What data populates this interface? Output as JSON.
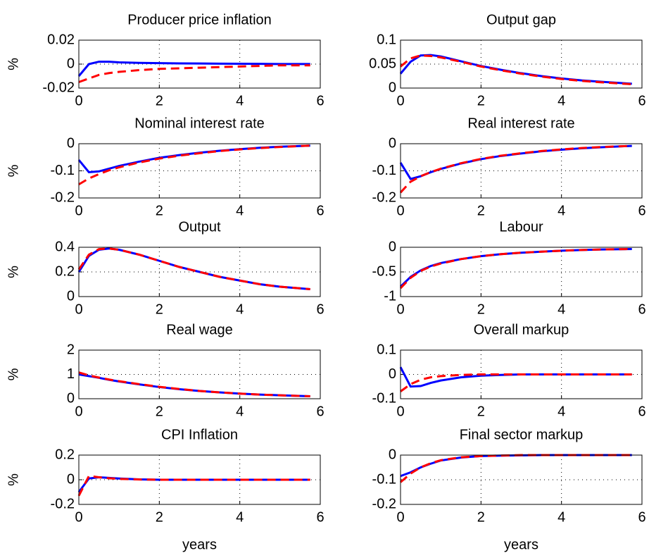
{
  "chart_data": [
    {
      "type": "line",
      "title": "Producer price inflation",
      "ylabel": "%",
      "grid": true,
      "x": [
        0,
        0.25,
        0.5,
        0.75,
        1,
        1.5,
        2,
        2.5,
        3,
        3.5,
        4,
        4.5,
        5,
        5.75
      ],
      "xlim": [
        0,
        6
      ],
      "xticks": [
        0,
        2,
        4,
        6
      ],
      "ylim": [
        -0.02,
        0.02
      ],
      "yticks": [
        -0.02,
        0,
        0.02
      ],
      "series": [
        {
          "color": "#0000ff",
          "dash": false,
          "values": [
            -0.01,
            0,
            0.002,
            0.002,
            0.0015,
            0.001,
            0.0008,
            0.0006,
            0.0005,
            0.0004,
            0.0003,
            0.0002,
            0.0001,
            0.0001
          ]
        },
        {
          "color": "#ff0000",
          "dash": true,
          "values": [
            -0.015,
            -0.012,
            -0.009,
            -0.0075,
            -0.0065,
            -0.005,
            -0.004,
            -0.0035,
            -0.003,
            -0.0025,
            -0.002,
            -0.0015,
            -0.001,
            -0.001
          ]
        }
      ]
    },
    {
      "type": "line",
      "title": "Output gap",
      "grid": true,
      "x": [
        0,
        0.25,
        0.5,
        0.75,
        1,
        1.5,
        2,
        2.5,
        3,
        3.5,
        4,
        4.5,
        5,
        5.75
      ],
      "xlim": [
        0,
        6
      ],
      "xticks": [
        0,
        2,
        4,
        6
      ],
      "ylim": [
        0,
        0.1
      ],
      "yticks": [
        0,
        0.05,
        0.1
      ],
      "series": [
        {
          "color": "#0000ff",
          "dash": false,
          "values": [
            0.03,
            0.055,
            0.068,
            0.069,
            0.066,
            0.056,
            0.046,
            0.038,
            0.031,
            0.025,
            0.02,
            0.016,
            0.013,
            0.009
          ]
        },
        {
          "color": "#ff0000",
          "dash": true,
          "values": [
            0.045,
            0.062,
            0.068,
            0.067,
            0.064,
            0.055,
            0.045,
            0.037,
            0.03,
            0.024,
            0.019,
            0.015,
            0.012,
            0.008
          ]
        }
      ]
    },
    {
      "type": "line",
      "title": "Nominal interest rate",
      "ylabel": "%",
      "grid": true,
      "x": [
        0,
        0.25,
        0.5,
        0.75,
        1,
        1.5,
        2,
        2.5,
        3,
        3.5,
        4,
        4.5,
        5,
        5.75
      ],
      "xlim": [
        0,
        6
      ],
      "xticks": [
        0,
        2,
        4,
        6
      ],
      "ylim": [
        -0.2,
        0
      ],
      "yticks": [
        -0.2,
        -0.1,
        0
      ],
      "series": [
        {
          "color": "#0000ff",
          "dash": false,
          "values": [
            -0.06,
            -0.105,
            -0.102,
            -0.092,
            -0.082,
            -0.066,
            -0.052,
            -0.042,
            -0.033,
            -0.026,
            -0.02,
            -0.015,
            -0.011,
            -0.007
          ]
        },
        {
          "color": "#ff0000",
          "dash": true,
          "values": [
            -0.15,
            -0.128,
            -0.112,
            -0.098,
            -0.087,
            -0.069,
            -0.055,
            -0.044,
            -0.035,
            -0.027,
            -0.021,
            -0.016,
            -0.012,
            -0.007
          ]
        }
      ]
    },
    {
      "type": "line",
      "title": "Real interest rate",
      "grid": true,
      "x": [
        0,
        0.25,
        0.5,
        0.75,
        1,
        1.5,
        2,
        2.5,
        3,
        3.5,
        4,
        4.5,
        5,
        5.75
      ],
      "xlim": [
        0,
        6
      ],
      "xticks": [
        0,
        2,
        4,
        6
      ],
      "ylim": [
        -0.2,
        0
      ],
      "yticks": [
        -0.2,
        -0.1,
        0
      ],
      "series": [
        {
          "color": "#0000ff",
          "dash": false,
          "values": [
            -0.07,
            -0.13,
            -0.12,
            -0.105,
            -0.093,
            -0.073,
            -0.057,
            -0.045,
            -0.036,
            -0.028,
            -0.022,
            -0.017,
            -0.013,
            -0.008
          ]
        },
        {
          "color": "#ff0000",
          "dash": true,
          "values": [
            -0.18,
            -0.14,
            -0.12,
            -0.105,
            -0.092,
            -0.072,
            -0.056,
            -0.044,
            -0.035,
            -0.027,
            -0.021,
            -0.016,
            -0.012,
            -0.008
          ]
        }
      ]
    },
    {
      "type": "line",
      "title": "Output",
      "ylabel": "%",
      "grid": true,
      "x": [
        0,
        0.25,
        0.5,
        0.75,
        1,
        1.5,
        2,
        2.5,
        3,
        3.5,
        4,
        4.5,
        5,
        5.75
      ],
      "xlim": [
        0,
        6
      ],
      "xticks": [
        0,
        2,
        4,
        6
      ],
      "ylim": [
        0,
        0.4
      ],
      "yticks": [
        0,
        0.2,
        0.4
      ],
      "series": [
        {
          "color": "#0000ff",
          "dash": false,
          "values": [
            0.2,
            0.33,
            0.38,
            0.39,
            0.38,
            0.34,
            0.29,
            0.24,
            0.2,
            0.16,
            0.13,
            0.1,
            0.08,
            0.06
          ]
        },
        {
          "color": "#ff0000",
          "dash": true,
          "values": [
            0.22,
            0.34,
            0.385,
            0.39,
            0.38,
            0.34,
            0.29,
            0.24,
            0.2,
            0.16,
            0.13,
            0.1,
            0.08,
            0.06
          ]
        }
      ]
    },
    {
      "type": "line",
      "title": "Labour",
      "grid": true,
      "x": [
        0,
        0.25,
        0.5,
        0.75,
        1,
        1.5,
        2,
        2.5,
        3,
        3.5,
        4,
        4.5,
        5,
        5.75
      ],
      "xlim": [
        0,
        6
      ],
      "xticks": [
        0,
        2,
        4,
        6
      ],
      "ylim": [
        -1,
        0
      ],
      "yticks": [
        -1,
        -0.5,
        0
      ],
      "series": [
        {
          "color": "#0000ff",
          "dash": false,
          "values": [
            -0.8,
            -0.6,
            -0.47,
            -0.38,
            -0.32,
            -0.24,
            -0.18,
            -0.14,
            -0.11,
            -0.09,
            -0.07,
            -0.055,
            -0.045,
            -0.035
          ]
        },
        {
          "color": "#ff0000",
          "dash": true,
          "values": [
            -0.83,
            -0.62,
            -0.48,
            -0.39,
            -0.33,
            -0.24,
            -0.18,
            -0.14,
            -0.11,
            -0.09,
            -0.07,
            -0.055,
            -0.045,
            -0.035
          ]
        }
      ]
    },
    {
      "type": "line",
      "title": "Real wage",
      "ylabel": "%",
      "grid": true,
      "x": [
        0,
        0.25,
        0.5,
        0.75,
        1,
        1.5,
        2,
        2.5,
        3,
        3.5,
        4,
        4.5,
        5,
        5.75
      ],
      "xlim": [
        0,
        6
      ],
      "xticks": [
        0,
        2,
        4,
        6
      ],
      "ylim": [
        0,
        2
      ],
      "yticks": [
        0,
        1,
        2
      ],
      "series": [
        {
          "color": "#0000ff",
          "dash": false,
          "values": [
            1.0,
            0.93,
            0.86,
            0.78,
            0.71,
            0.59,
            0.48,
            0.39,
            0.32,
            0.26,
            0.21,
            0.17,
            0.14,
            0.1
          ]
        },
        {
          "color": "#ff0000",
          "dash": true,
          "values": [
            1.08,
            0.96,
            0.87,
            0.79,
            0.72,
            0.6,
            0.49,
            0.4,
            0.32,
            0.26,
            0.21,
            0.17,
            0.14,
            0.1
          ]
        }
      ]
    },
    {
      "type": "line",
      "title": "Overall markup",
      "grid": true,
      "x": [
        0,
        0.25,
        0.5,
        0.75,
        1,
        1.5,
        2,
        2.5,
        3,
        3.5,
        4,
        4.5,
        5,
        5.75
      ],
      "xlim": [
        0,
        6
      ],
      "xticks": [
        0,
        2,
        4,
        6
      ],
      "ylim": [
        -0.1,
        0.1
      ],
      "yticks": [
        -0.1,
        0,
        0.1
      ],
      "series": [
        {
          "color": "#0000ff",
          "dash": false,
          "values": [
            0.03,
            -0.05,
            -0.048,
            -0.035,
            -0.025,
            -0.012,
            -0.005,
            -0.002,
            0,
            0,
            0,
            0,
            0,
            0
          ]
        },
        {
          "color": "#ff0000",
          "dash": true,
          "values": [
            -0.07,
            -0.04,
            -0.022,
            -0.012,
            -0.007,
            -0.002,
            0,
            0,
            0,
            0,
            0,
            0,
            0,
            0
          ]
        }
      ]
    },
    {
      "type": "line",
      "title": "CPI Inflation",
      "ylabel": "%",
      "xlabel": "years",
      "grid": true,
      "x": [
        0,
        0.25,
        0.5,
        0.75,
        1,
        1.5,
        2,
        2.5,
        3,
        3.5,
        4,
        4.5,
        5,
        5.75
      ],
      "xlim": [
        0,
        6
      ],
      "xticks": [
        0,
        2,
        4,
        6
      ],
      "ylim": [
        -0.2,
        0.2
      ],
      "yticks": [
        -0.2,
        0,
        0.2
      ],
      "series": [
        {
          "color": "#0000ff",
          "dash": false,
          "values": [
            -0.1,
            0.01,
            0.02,
            0.015,
            0.01,
            0.003,
            0,
            0,
            0,
            0,
            0,
            0,
            0,
            0
          ]
        },
        {
          "color": "#ff0000",
          "dash": true,
          "values": [
            -0.13,
            0.03,
            0.02,
            0.012,
            0.007,
            0.002,
            0,
            0,
            0,
            0,
            0,
            0,
            0,
            0
          ]
        }
      ]
    },
    {
      "type": "line",
      "title": "Final sector markup",
      "xlabel": "years",
      "grid": true,
      "x": [
        0,
        0.25,
        0.5,
        0.75,
        1,
        1.5,
        2,
        2.5,
        3,
        3.5,
        4,
        4.5,
        5,
        5.75
      ],
      "xlim": [
        0,
        6
      ],
      "xticks": [
        0,
        2,
        4,
        6
      ],
      "ylim": [
        -0.2,
        0
      ],
      "yticks": [
        -0.2,
        -0.1,
        0
      ],
      "series": [
        {
          "color": "#0000ff",
          "dash": false,
          "values": [
            -0.085,
            -0.07,
            -0.05,
            -0.035,
            -0.022,
            -0.01,
            -0.004,
            -0.002,
            -0.001,
            0,
            0,
            0,
            0,
            0
          ]
        },
        {
          "color": "#ff0000",
          "dash": true,
          "values": [
            -0.11,
            -0.075,
            -0.05,
            -0.033,
            -0.021,
            -0.009,
            -0.004,
            -0.002,
            0,
            0,
            0,
            0,
            0,
            0
          ]
        }
      ]
    }
  ]
}
